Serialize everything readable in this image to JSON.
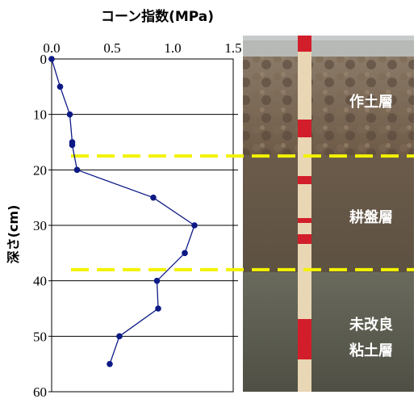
{
  "chart_data": {
    "type": "line",
    "title": "コーン指数(MPa)",
    "ylabel": "深さ(cm)",
    "xlabel": "",
    "xlim": [
      0,
      1.5
    ],
    "ylim": [
      0,
      60
    ],
    "y_inverted": true,
    "x_ticks": [
      "0.0",
      "0.5",
      "1.0",
      "1.5"
    ],
    "y_ticks": [
      "0",
      "10",
      "20",
      "30",
      "40",
      "50",
      "60"
    ],
    "grid": "horizontal",
    "legend": "none",
    "series": [
      {
        "color": "#0d1a85",
        "x": [
          0.0,
          0.07,
          0.15,
          0.17,
          0.17,
          0.21,
          0.84,
          1.18,
          1.1,
          0.87,
          0.88,
          0.56,
          0.48
        ],
        "y": [
          0,
          5,
          10,
          15,
          15.5,
          20,
          25,
          30,
          35,
          40,
          45,
          50,
          55
        ]
      }
    ],
    "boundaries": [
      {
        "depth": 17.5,
        "color": "#f2f200",
        "style": "dashed"
      },
      {
        "depth": 38,
        "color": "#f2f200",
        "style": "dashed"
      }
    ]
  },
  "photo": {
    "layers": [
      {
        "label_lines": [
          "作土層"
        ]
      },
      {
        "label_lines": [
          "耕盤層"
        ]
      },
      {
        "label_lines": [
          "未改良",
          "粘土層"
        ]
      }
    ]
  }
}
